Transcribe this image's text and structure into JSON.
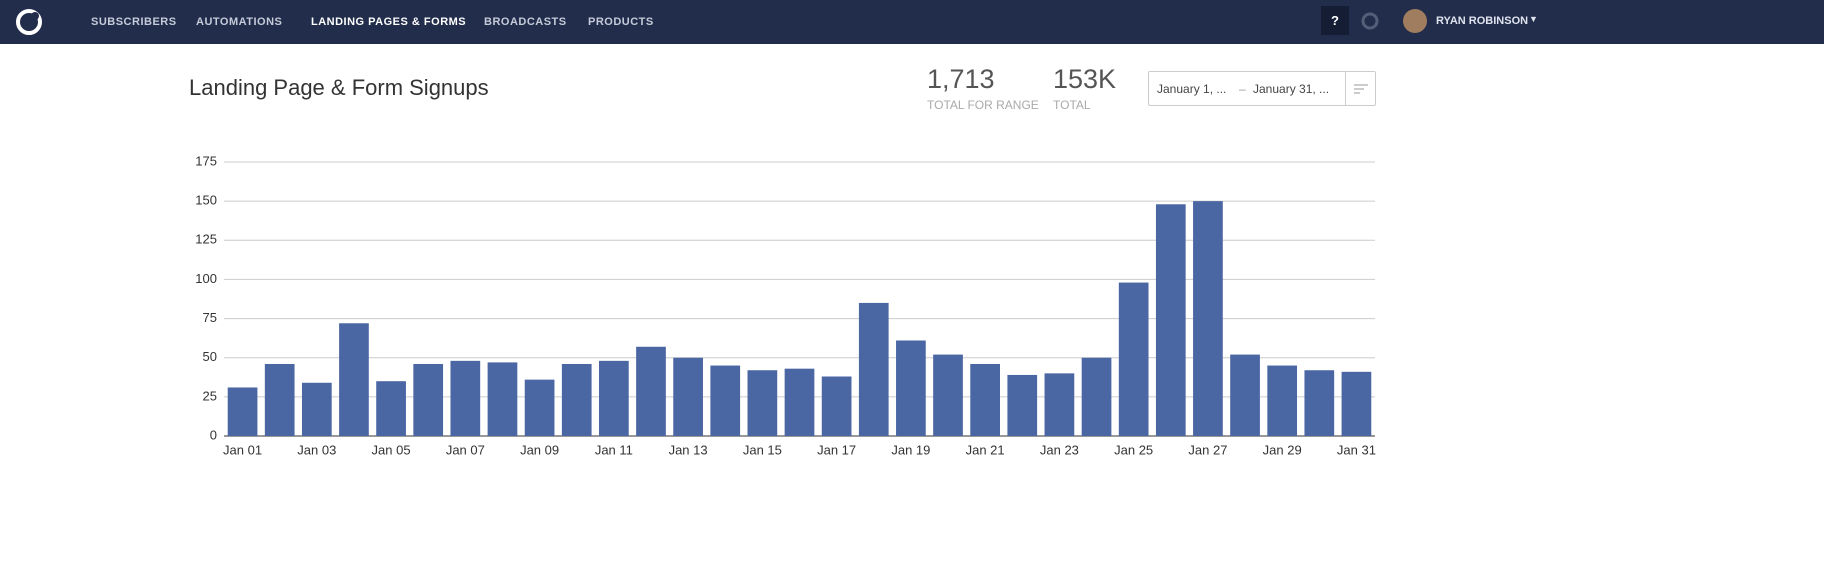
{
  "nav": {
    "items": [
      "SUBSCRIBERS",
      "AUTOMATIONS",
      "LANDING PAGES & FORMS",
      "BROADCASTS",
      "PRODUCTS"
    ],
    "help": "?",
    "user": "RYAN ROBINSON"
  },
  "header": {
    "title": "Landing Page & Form Signups",
    "stats": [
      {
        "value": "1,713",
        "label": "TOTAL FOR RANGE"
      },
      {
        "value": "153K",
        "label": "TOTAL"
      }
    ],
    "date_from": "January 1, ...",
    "date_sep": "–",
    "date_to": "January 31, ..."
  },
  "chart_data": {
    "type": "bar",
    "color": "#4a66a3",
    "categories": [
      "Jan 01",
      null,
      "Jan 03",
      null,
      "Jan 05",
      null,
      "Jan 07",
      null,
      "Jan 09",
      null,
      "Jan 11",
      null,
      "Jan 13",
      null,
      "Jan 15",
      null,
      "Jan 17",
      null,
      "Jan 19",
      null,
      "Jan 21",
      null,
      "Jan 23",
      null,
      "Jan 25",
      null,
      "Jan 27",
      null,
      "Jan 29",
      null,
      "Jan 31"
    ],
    "values": [
      31,
      46,
      34,
      72,
      35,
      46,
      48,
      47,
      36,
      46,
      48,
      57,
      50,
      45,
      42,
      43,
      38,
      85,
      61,
      52,
      46,
      39,
      40,
      50,
      98,
      148,
      150,
      52,
      45,
      42,
      41
    ],
    "ylim": [
      0,
      175
    ],
    "yticks": [
      0,
      25,
      50,
      75,
      100,
      125,
      150,
      175
    ],
    "grid": true
  }
}
